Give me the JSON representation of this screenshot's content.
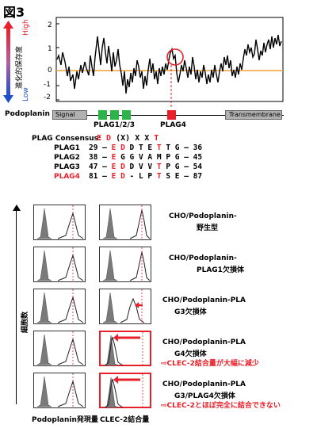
{
  "figure": {
    "title": "図3"
  },
  "conservation": {
    "y_label_high": "High",
    "y_label_low": "Low",
    "y_axis_title": "進化的保存度",
    "ticks": [
      "2",
      "1",
      "0",
      "-1",
      "-2"
    ],
    "colors": {
      "line": "#000000",
      "baseline": "#f0a030",
      "circle": "#e8202a",
      "arrow_top": "#e8202a",
      "arrow_bottom": "#2050c8"
    }
  },
  "domain_map": {
    "protein_label": "Podoplanin",
    "signal_label": "Signal",
    "tm_label": "Transmembrane",
    "plag123_label": "PLAG1/2/3",
    "plag4_label": "PLAG4",
    "colors": {
      "plag123": "#2cb34a",
      "plag4": "#e8202a",
      "signal": "#b0b0b0",
      "tm": "#b0b0b0"
    }
  },
  "sequences": {
    "consensus_label": "PLAG Consensus:",
    "consensus": [
      {
        "c": "E",
        "red": true
      },
      {
        "c": "D",
        "red": true
      },
      {
        "c": "(X)",
        "red": false
      },
      {
        "c": "X",
        "red": false
      },
      {
        "c": "X",
        "red": false
      },
      {
        "c": "T",
        "red": true
      }
    ],
    "rows": [
      {
        "name": "PLAG1",
        "start": "29",
        "end": "36",
        "red_name": false,
        "res": [
          {
            "c": "E",
            "red": true
          },
          {
            "c": "D",
            "red": true
          },
          {
            "c": "D",
            "red": false
          },
          {
            "c": "T",
            "red": false
          },
          {
            "c": "E",
            "red": false
          },
          {
            "c": "T",
            "red": true
          },
          {
            "c": "T",
            "red": false
          },
          {
            "c": "G",
            "red": false
          }
        ]
      },
      {
        "name": "PLAG2",
        "start": "38",
        "end": "45",
        "red_name": false,
        "res": [
          {
            "c": "E",
            "red": true
          },
          {
            "c": "G",
            "red": false
          },
          {
            "c": "G",
            "red": false
          },
          {
            "c": "V",
            "red": false
          },
          {
            "c": "A",
            "red": false
          },
          {
            "c": "M",
            "red": false
          },
          {
            "c": "P",
            "red": false
          },
          {
            "c": "G",
            "red": false
          }
        ]
      },
      {
        "name": "PLAG3",
        "start": "47",
        "end": "54",
        "red_name": false,
        "res": [
          {
            "c": "E",
            "red": true
          },
          {
            "c": "D",
            "red": true
          },
          {
            "c": "D",
            "red": false
          },
          {
            "c": "V",
            "red": false
          },
          {
            "c": "V",
            "red": false
          },
          {
            "c": "T",
            "red": true
          },
          {
            "c": "P",
            "red": false
          },
          {
            "c": "G",
            "red": false
          }
        ]
      },
      {
        "name": "PLAG4",
        "start": "81",
        "end": "87",
        "red_name": true,
        "res": [
          {
            "c": "E",
            "red": true
          },
          {
            "c": "D",
            "red": true
          },
          {
            "c": "-",
            "red": false
          },
          {
            "c": "L",
            "red": false
          },
          {
            "c": "P",
            "red": false
          },
          {
            "c": "T",
            "red": true
          },
          {
            "c": "S",
            "red": false
          },
          {
            "c": "E",
            "red": false
          }
        ]
      }
    ]
  },
  "flow": {
    "y_axis_label": "細胞数",
    "x_label_left": "Podoplanin発現量",
    "x_label_right": "CLEC-2結合量",
    "rows": [
      {
        "label_line1": "CHO/Podoplanin-",
        "label_line2": "野生型",
        "note": "",
        "red_right": false,
        "shift": false
      },
      {
        "label_line1": "CHO/Podoplanin-",
        "label_line2": "PLAG1欠損体",
        "note": "",
        "red_right": false,
        "shift": false
      },
      {
        "label_line1": "CHO/Podoplanin-PLA",
        "label_line2": "G3欠損体",
        "note": "",
        "red_right": false,
        "shift": true
      },
      {
        "label_line1": "CHO/Podoplanin-PLA",
        "label_line2": "G4欠損体",
        "note": "CLEC-2結合量が大幅に減少",
        "red_right": true,
        "shift": true
      },
      {
        "label_line1": "CHO/Podoplanin-PLA",
        "label_line2": "G3/PLAG4欠損体",
        "note": "CLEC-2とほぼ完全に結合できない",
        "red_right": true,
        "shift": true
      }
    ],
    "note_arrow": "⇨"
  }
}
